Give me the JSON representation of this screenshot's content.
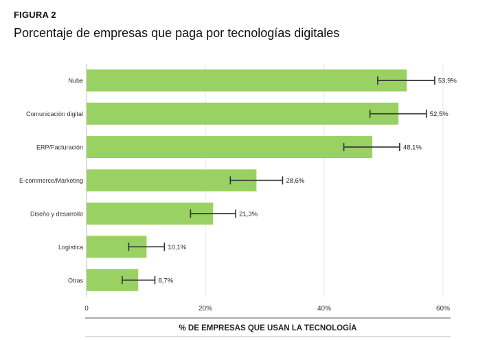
{
  "figure_label": "FIGURA 2",
  "chart_data": {
    "type": "bar",
    "orientation": "horizontal",
    "title": "Porcentaje de empresas que paga por tecnologías digitales",
    "xlabel": "% DE EMPRESAS QUE USAN LA TECNOLOGÍA",
    "ylabel": "",
    "categories": [
      "Nube",
      "Comunicación digital",
      "ERP/Facturación",
      "E-commerce/Marketing",
      "Diseño y desarrollo",
      "Logística",
      "Otras"
    ],
    "values": [
      53.9,
      52.5,
      48.1,
      28.6,
      21.3,
      10.1,
      8.7
    ],
    "data_labels": [
      "53,9%",
      "52,5%",
      "48,1%",
      "28,6%",
      "21,3%",
      "10,1%",
      "8,7%"
    ],
    "error_low": [
      49.0,
      47.7,
      43.3,
      24.2,
      17.5,
      7.1,
      6.0
    ],
    "error_high": [
      58.6,
      57.2,
      52.7,
      33.0,
      25.1,
      13.1,
      11.5
    ],
    "xlim": [
      0,
      60
    ],
    "xticks": [
      0,
      20,
      40,
      60
    ],
    "xtick_labels": [
      "0",
      "20%",
      "40%",
      "60%"
    ],
    "grid": "vertical",
    "legend": "none",
    "colors": {
      "bar": "#99d162",
      "error_bar": "#333333",
      "grid": "#e6e6e6"
    }
  }
}
